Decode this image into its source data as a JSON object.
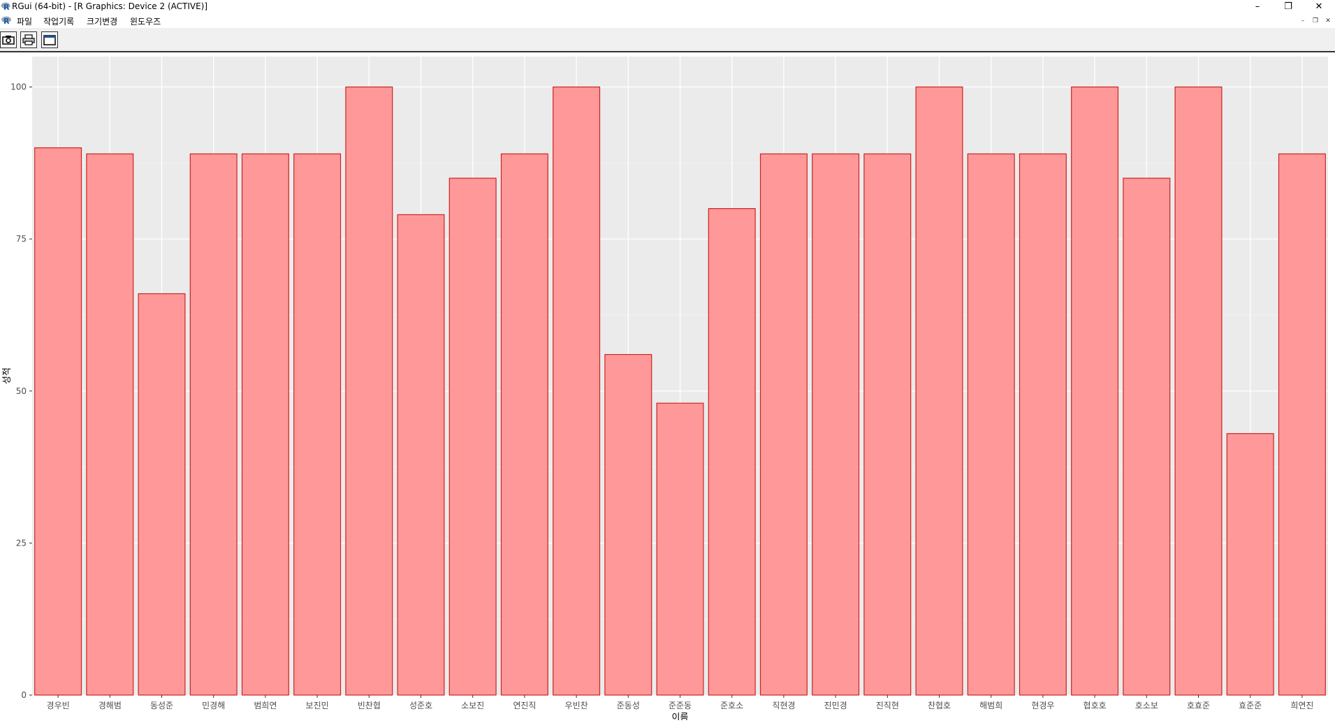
{
  "window": {
    "title": "RGui (64-bit) - [R Graphics: Device 2 (ACTIVE)]",
    "minimize_glyph": "–",
    "restore_glyph": "❐",
    "close_glyph": "✕"
  },
  "menu": {
    "items": [
      "파일",
      "작업기록",
      "크기변경",
      "윈도우즈"
    ],
    "mdi_buttons": [
      "–",
      "❐",
      "✕"
    ]
  },
  "toolbar": {
    "buttons": [
      {
        "icon": "copy-clipboard-icon"
      },
      {
        "icon": "print-icon"
      },
      {
        "icon": "window-icon"
      }
    ]
  },
  "colors": {
    "panel_bg": "#ebebeb",
    "grid_major": "#ffffff",
    "bar_fill": "#ff9999",
    "bar_outline": "#cc2222",
    "tick_text": "#4d4d4d",
    "axis_title": "#000000"
  },
  "chart_data": {
    "type": "bar",
    "xlabel": "이름",
    "ylabel": "성적",
    "ylim": [
      0,
      105
    ],
    "yticks": [
      0,
      25,
      50,
      75,
      100
    ],
    "grid": true,
    "legend": "none",
    "categories": [
      "경우빈",
      "경해범",
      "동성준",
      "민경해",
      "범희연",
      "보진민",
      "빈찬협",
      "성준호",
      "소보진",
      "연진직",
      "우빈찬",
      "준동성",
      "준준동",
      "준호소",
      "직현경",
      "진민경",
      "진직현",
      "찬협호",
      "해범희",
      "현경우",
      "협호호",
      "호소보",
      "호효준",
      "효준준",
      "희연진"
    ],
    "values": [
      90,
      89,
      66,
      89,
      89,
      89,
      100,
      79,
      85,
      89,
      100,
      56,
      48,
      80,
      89,
      89,
      89,
      100,
      89,
      89,
      100,
      85,
      100,
      43,
      89
    ]
  }
}
